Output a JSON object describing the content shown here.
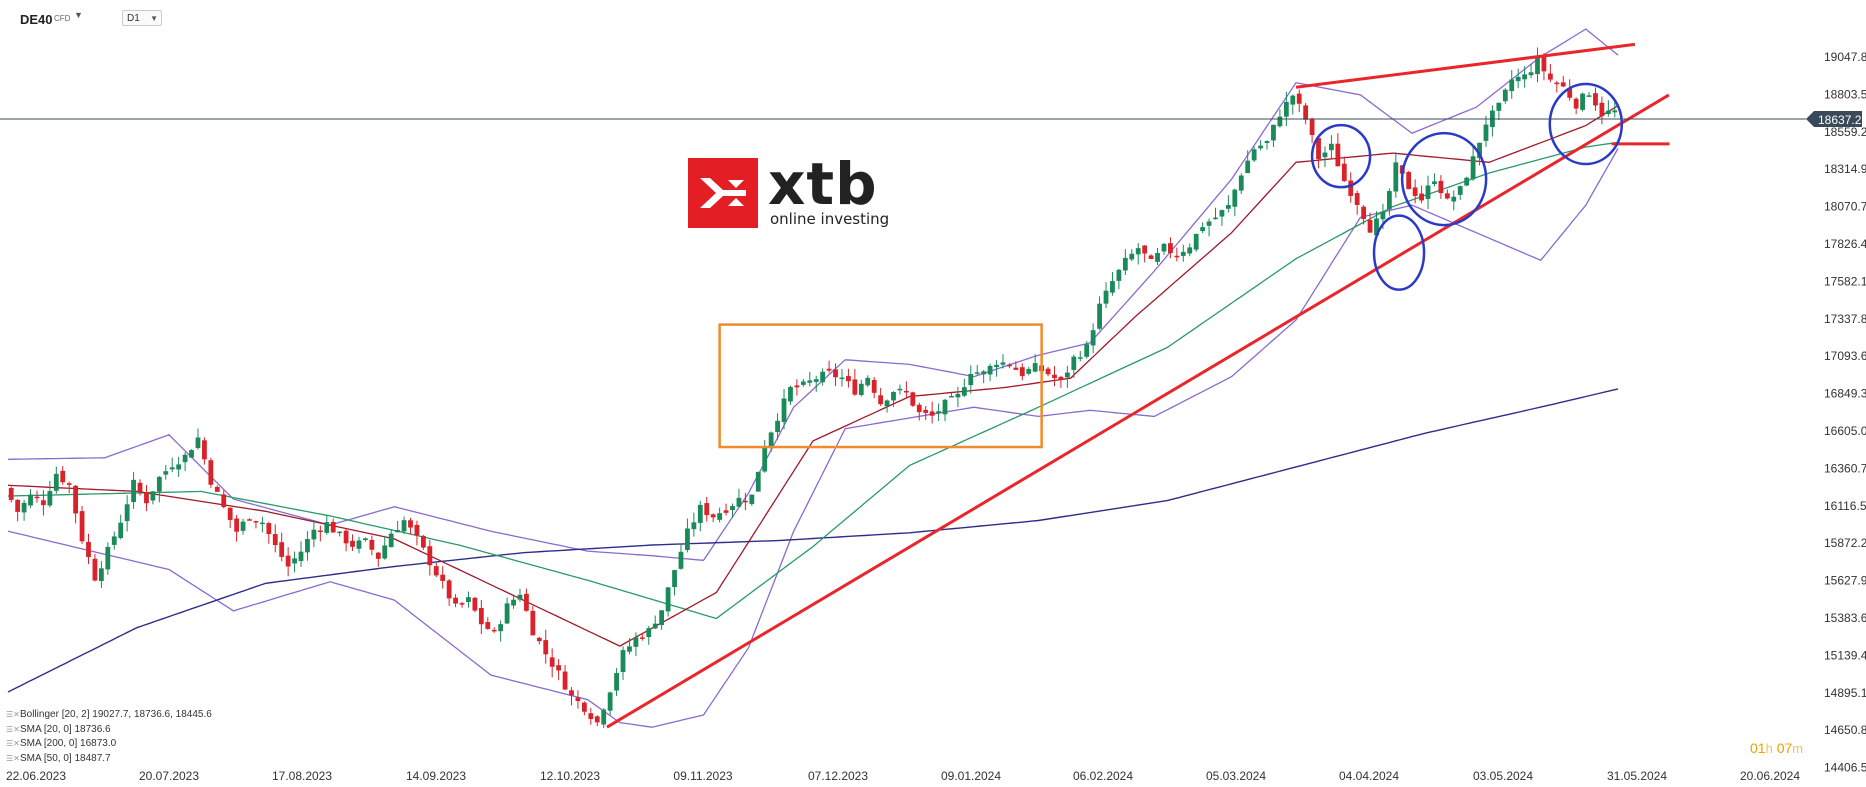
{
  "toolbar": {
    "symbol": "DE40",
    "symbol_type": "CFD",
    "timeframe": "D1"
  },
  "logo": {
    "name": "xtb",
    "tagline": "online investing"
  },
  "current_price": "18637.2",
  "countdown": {
    "hours": "01",
    "h_unit": "h",
    "minutes": "07",
    "m_unit": "m"
  },
  "legend": [
    {
      "text": "Bollinger  [20, 2]  19027.7,  18736.6,  18445.6"
    },
    {
      "text": "SMA  [20,  0]  18736.6"
    },
    {
      "text": "SMA  [200,  0]  16873.0"
    },
    {
      "text": "SMA  [50,  0]  18487.7"
    }
  ],
  "colors": {
    "up": "#1a8a5a",
    "down": "#d9222a",
    "sma20": "#a01a2a",
    "sma50": "#2a9a6a",
    "sma200": "#2e2e8a",
    "bollinger": "#8a6ad0",
    "trendline": "#e8262c",
    "range_box": "#f08a2a",
    "circles": "#2a3ac8"
  },
  "chart_data": {
    "type": "candlestick",
    "y_ticks": [
      "19047.8",
      "18803.5",
      "18559.2",
      "18314.9",
      "18070.7",
      "17826.4",
      "17582.1",
      "17337.8",
      "17093.6",
      "16849.3",
      "16605.0",
      "16360.7",
      "16116.5",
      "15872.2",
      "15627.9",
      "15383.6",
      "15139.4",
      "14895.1",
      "14650.8",
      "14406.5"
    ],
    "x_ticks": [
      "22.06.2023",
      "20.07.2023",
      "17.08.2023",
      "14.09.2023",
      "12.10.2023",
      "09.11.2023",
      "07.12.2023",
      "09.01.2024",
      "06.02.2024",
      "05.03.2024",
      "04.04.2024",
      "03.05.2024",
      "31.05.2024",
      "20.06.2024"
    ],
    "ylim": [
      14406.5,
      19200
    ],
    "close_path": [
      [
        0,
        16230
      ],
      [
        2,
        16080
      ],
      [
        4,
        16180
      ],
      [
        6,
        16140
      ],
      [
        8,
        16330
      ],
      [
        10,
        16250
      ],
      [
        12,
        15900
      ],
      [
        14,
        15650
      ],
      [
        16,
        15820
      ],
      [
        18,
        16020
      ],
      [
        20,
        16260
      ],
      [
        22,
        16150
      ],
      [
        24,
        16300
      ],
      [
        26,
        16390
      ],
      [
        28,
        16440
      ],
      [
        30,
        16560
      ],
      [
        32,
        16280
      ],
      [
        34,
        16100
      ],
      [
        36,
        15950
      ],
      [
        38,
        16050
      ],
      [
        40,
        16010
      ],
      [
        42,
        15850
      ],
      [
        44,
        15720
      ],
      [
        46,
        15820
      ],
      [
        48,
        15960
      ],
      [
        50,
        16000
      ],
      [
        52,
        15920
      ],
      [
        54,
        15860
      ],
      [
        56,
        15880
      ],
      [
        58,
        15780
      ],
      [
        60,
        15940
      ],
      [
        62,
        16020
      ],
      [
        64,
        15900
      ],
      [
        66,
        15750
      ],
      [
        68,
        15600
      ],
      [
        70,
        15450
      ],
      [
        72,
        15500
      ],
      [
        74,
        15350
      ],
      [
        76,
        15280
      ],
      [
        78,
        15460
      ],
      [
        80,
        15550
      ],
      [
        82,
        15300
      ],
      [
        84,
        15150
      ],
      [
        86,
        15020
      ],
      [
        88,
        14870
      ],
      [
        90,
        14800
      ],
      [
        92,
        14700
      ],
      [
        94,
        14920
      ],
      [
        96,
        15150
      ],
      [
        98,
        15250
      ],
      [
        100,
        15300
      ],
      [
        102,
        15440
      ],
      [
        104,
        15700
      ],
      [
        106,
        15940
      ],
      [
        108,
        16100
      ],
      [
        110,
        16050
      ],
      [
        112,
        16100
      ],
      [
        114,
        16160
      ],
      [
        116,
        16180
      ],
      [
        118,
        16520
      ],
      [
        120,
        16700
      ],
      [
        122,
        16880
      ],
      [
        124,
        16900
      ],
      [
        126,
        16950
      ],
      [
        128,
        16980
      ],
      [
        130,
        16950
      ],
      [
        132,
        16870
      ],
      [
        134,
        16960
      ],
      [
        136,
        16790
      ],
      [
        138,
        16870
      ],
      [
        140,
        16850
      ],
      [
        142,
        16720
      ],
      [
        144,
        16700
      ],
      [
        146,
        16780
      ],
      [
        148,
        16830
      ],
      [
        150,
        17000
      ],
      [
        152,
        16980
      ],
      [
        154,
        17060
      ],
      [
        156,
        17040
      ],
      [
        158,
        16980
      ],
      [
        160,
        17020
      ],
      [
        162,
        16980
      ],
      [
        164,
        16920
      ],
      [
        166,
        17080
      ],
      [
        168,
        17150
      ],
      [
        170,
        17420
      ],
      [
        172,
        17580
      ],
      [
        174,
        17710
      ],
      [
        176,
        17800
      ],
      [
        178,
        17700
      ],
      [
        180,
        17800
      ],
      [
        182,
        17760
      ],
      [
        184,
        17820
      ],
      [
        186,
        17950
      ],
      [
        188,
        18000
      ],
      [
        190,
        18070
      ],
      [
        192,
        18290
      ],
      [
        194,
        18450
      ],
      [
        196,
        18490
      ],
      [
        198,
        18680
      ],
      [
        200,
        18800
      ],
      [
        202,
        18640
      ],
      [
        204,
        18390
      ],
      [
        206,
        18460
      ],
      [
        208,
        18240
      ],
      [
        210,
        18100
      ],
      [
        212,
        17930
      ],
      [
        214,
        18010
      ],
      [
        216,
        18330
      ],
      [
        218,
        18200
      ],
      [
        220,
        18120
      ],
      [
        222,
        18260
      ],
      [
        224,
        18100
      ],
      [
        226,
        18180
      ],
      [
        228,
        18380
      ],
      [
        230,
        18620
      ],
      [
        232,
        18720
      ],
      [
        234,
        18900
      ],
      [
        236,
        18920
      ],
      [
        238,
        19020
      ],
      [
        240,
        18900
      ],
      [
        242,
        18850
      ],
      [
        244,
        18740
      ],
      [
        246,
        18820
      ],
      [
        248,
        18680
      ],
      [
        250,
        18690
      ]
    ],
    "sma20": [
      [
        0,
        16250
      ],
      [
        20,
        16210
      ],
      [
        40,
        16080
      ],
      [
        60,
        15900
      ],
      [
        80,
        15500
      ],
      [
        95,
        15200
      ],
      [
        110,
        15550
      ],
      [
        125,
        16540
      ],
      [
        140,
        16830
      ],
      [
        155,
        16890
      ],
      [
        165,
        16950
      ],
      [
        175,
        17350
      ],
      [
        190,
        17900
      ],
      [
        200,
        18360
      ],
      [
        215,
        18420
      ],
      [
        230,
        18360
      ],
      [
        245,
        18600
      ],
      [
        250,
        18730
      ]
    ],
    "sma50": [
      [
        0,
        16180
      ],
      [
        30,
        16210
      ],
      [
        50,
        16050
      ],
      [
        70,
        15860
      ],
      [
        90,
        15630
      ],
      [
        110,
        15380
      ],
      [
        125,
        15850
      ],
      [
        140,
        16380
      ],
      [
        160,
        16760
      ],
      [
        180,
        17150
      ],
      [
        200,
        17730
      ],
      [
        215,
        18070
      ],
      [
        230,
        18290
      ],
      [
        245,
        18460
      ],
      [
        250,
        18490
      ]
    ],
    "sma200": [
      [
        0,
        14900
      ],
      [
        20,
        15320
      ],
      [
        40,
        15610
      ],
      [
        60,
        15720
      ],
      [
        80,
        15810
      ],
      [
        100,
        15860
      ],
      [
        120,
        15890
      ],
      [
        140,
        15940
      ],
      [
        160,
        16020
      ],
      [
        180,
        16150
      ],
      [
        200,
        16370
      ],
      [
        220,
        16590
      ],
      [
        240,
        16780
      ],
      [
        250,
        16880
      ]
    ],
    "bb_upper": [
      [
        0,
        16420
      ],
      [
        15,
        16430
      ],
      [
        25,
        16580
      ],
      [
        35,
        16160
      ],
      [
        50,
        15990
      ],
      [
        60,
        16110
      ],
      [
        75,
        15950
      ],
      [
        90,
        15820
      ],
      [
        100,
        15790
      ],
      [
        108,
        15760
      ],
      [
        115,
        16200
      ],
      [
        122,
        16760
      ],
      [
        130,
        17070
      ],
      [
        140,
        17040
      ],
      [
        150,
        16960
      ],
      [
        160,
        17100
      ],
      [
        168,
        17180
      ],
      [
        178,
        17650
      ],
      [
        190,
        18250
      ],
      [
        200,
        18880
      ],
      [
        210,
        18800
      ],
      [
        218,
        18550
      ],
      [
        228,
        18720
      ],
      [
        238,
        19050
      ],
      [
        245,
        19230
      ],
      [
        250,
        19060
      ]
    ],
    "bb_lower": [
      [
        0,
        15950
      ],
      [
        15,
        15800
      ],
      [
        25,
        15700
      ],
      [
        35,
        15430
      ],
      [
        50,
        15620
      ],
      [
        60,
        15500
      ],
      [
        75,
        15010
      ],
      [
        90,
        14850
      ],
      [
        95,
        14700
      ],
      [
        100,
        14670
      ],
      [
        108,
        14750
      ],
      [
        115,
        15190
      ],
      [
        122,
        15950
      ],
      [
        130,
        16620
      ],
      [
        140,
        16690
      ],
      [
        150,
        16760
      ],
      [
        160,
        16700
      ],
      [
        168,
        16740
      ],
      [
        178,
        16700
      ],
      [
        190,
        16960
      ],
      [
        200,
        17330
      ],
      [
        210,
        18000
      ],
      [
        218,
        18080
      ],
      [
        228,
        17900
      ],
      [
        238,
        17720
      ],
      [
        245,
        18080
      ],
      [
        250,
        18450
      ]
    ]
  },
  "annotations": {
    "support_trendline": "rising",
    "resistance_trendline": "rising",
    "range_box": "consolidation",
    "circles": 4
  }
}
